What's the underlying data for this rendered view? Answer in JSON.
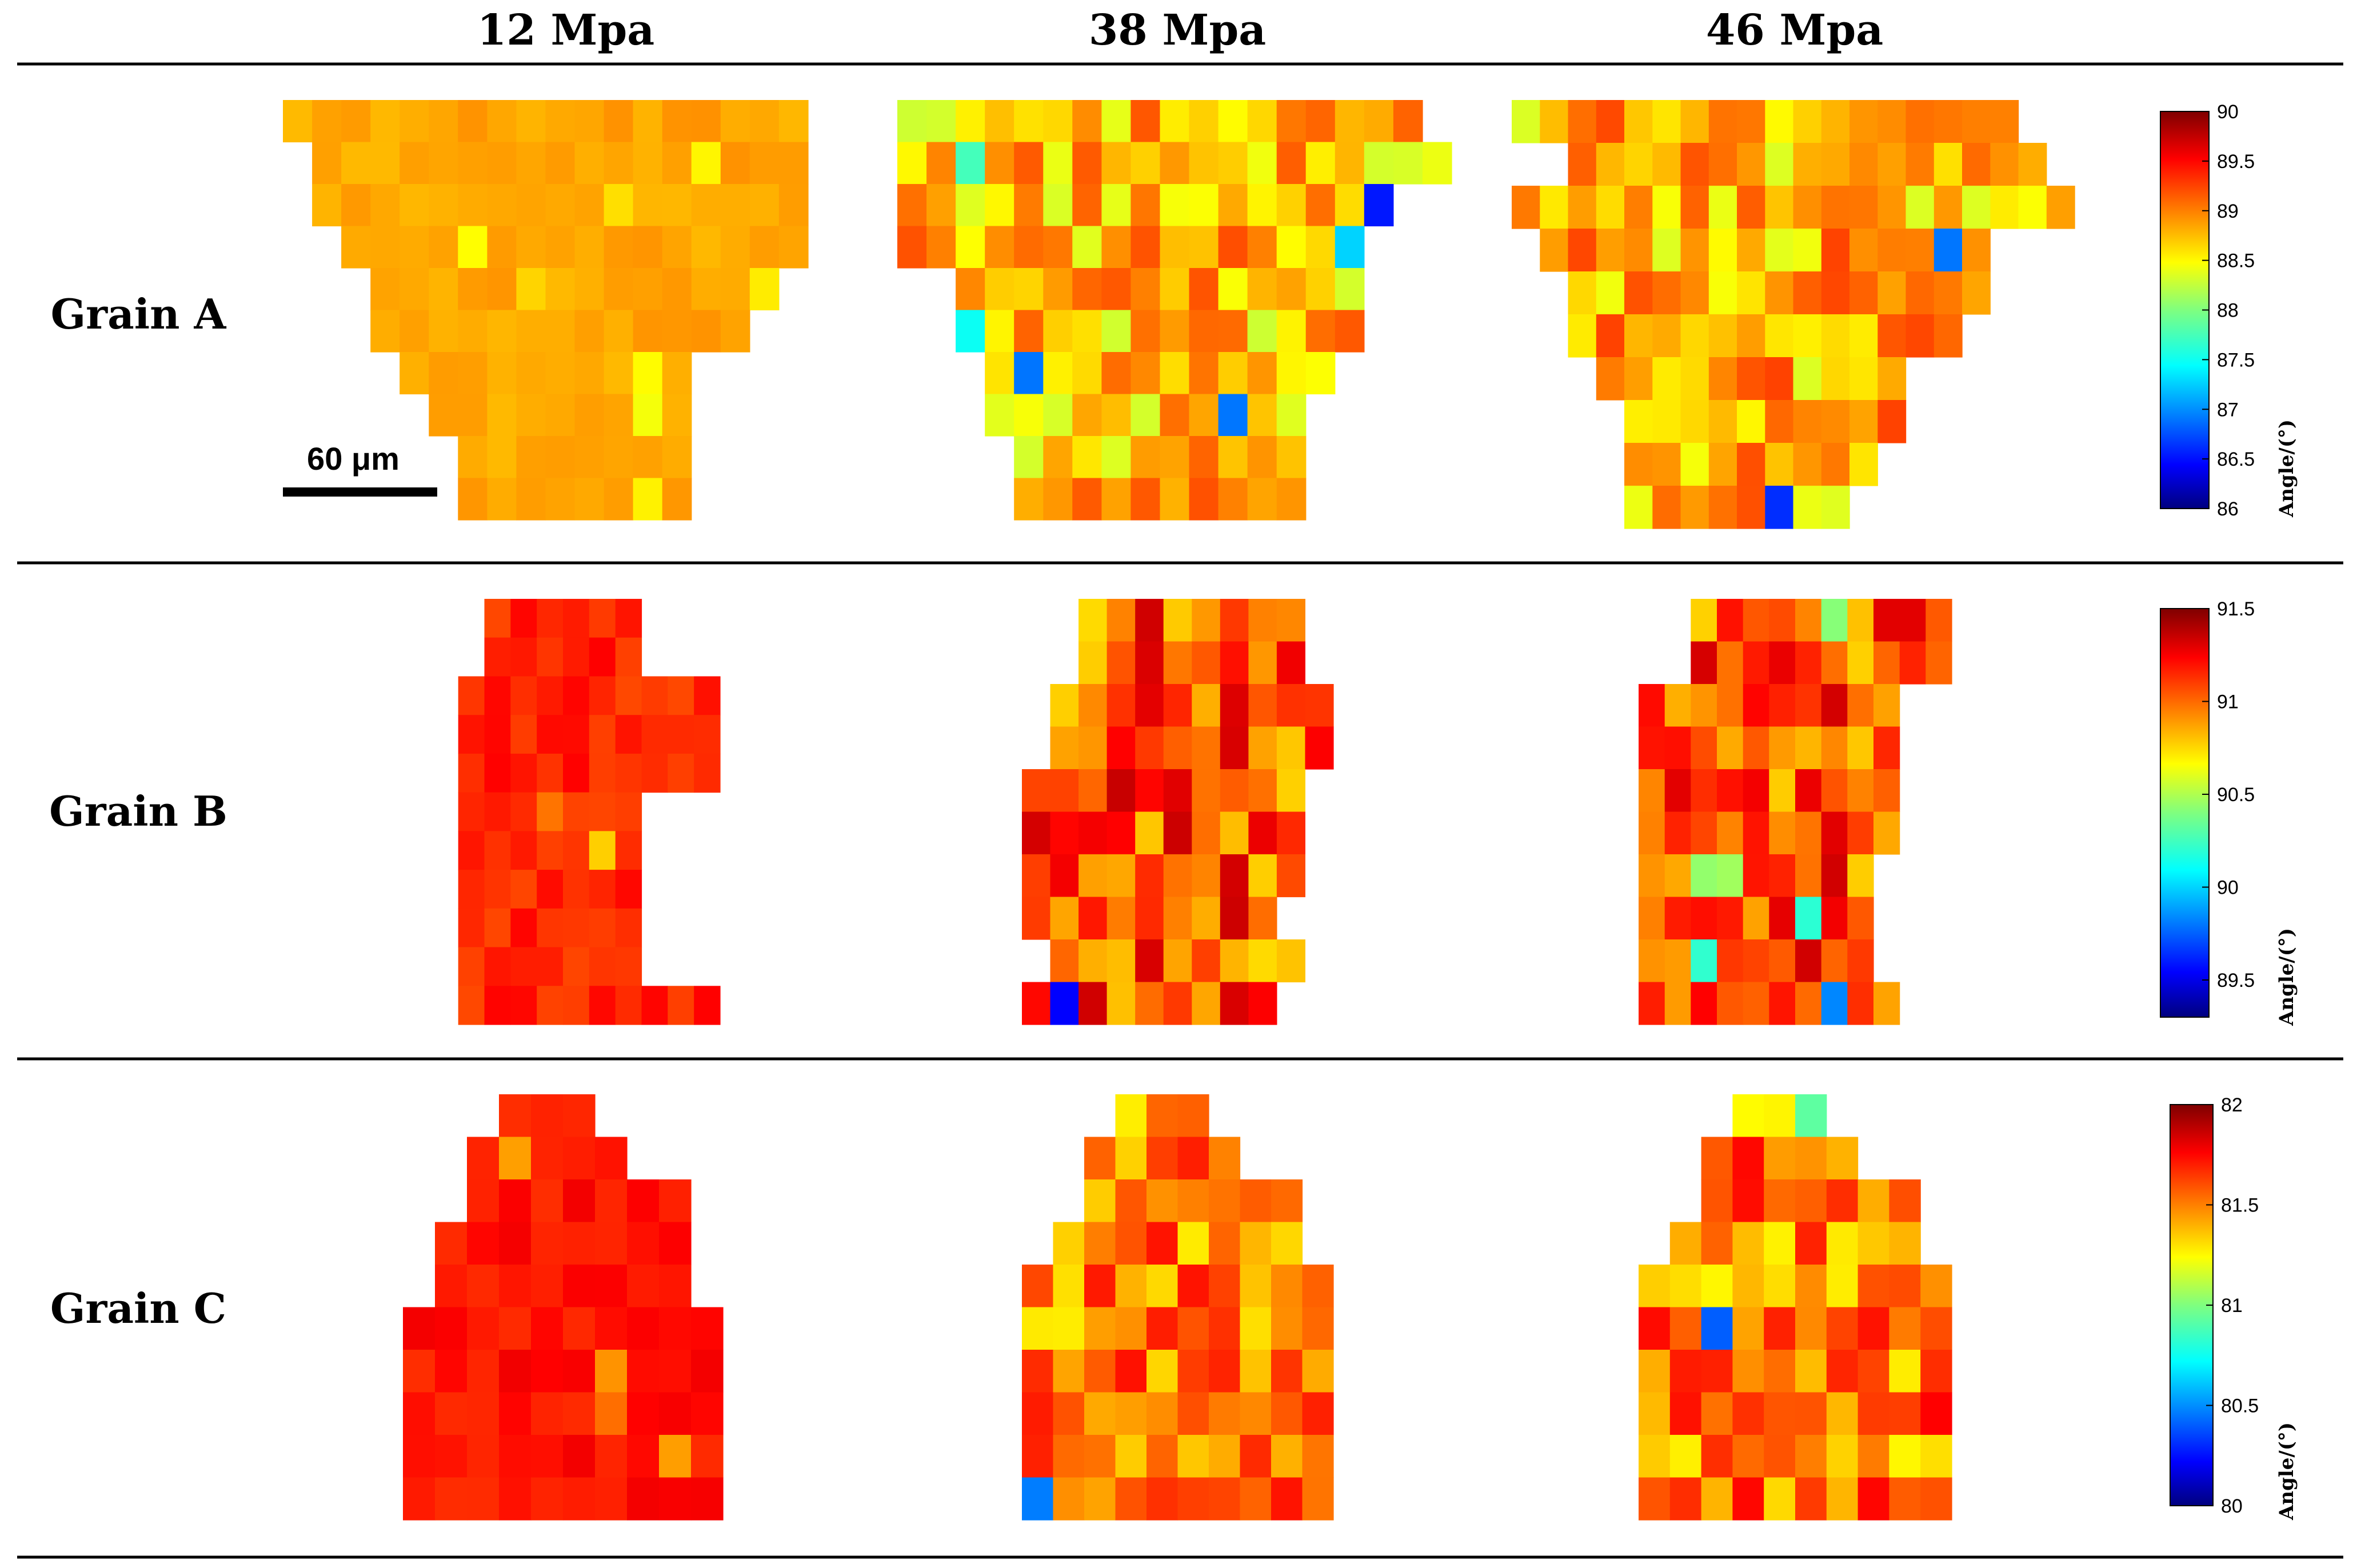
{
  "columns": [
    {
      "label": "12 Mpa"
    },
    {
      "label": "38 Mpa"
    },
    {
      "label": "46 Mpa"
    }
  ],
  "rows": [
    {
      "label": "Grain A",
      "colorbar": {
        "min": 86,
        "max": 90,
        "ticks": [
          "90",
          "89.5",
          "89",
          "88.5",
          "88",
          "87.5",
          "87",
          "86.5",
          "86"
        ],
        "label": "Angle/(°)"
      },
      "maps": [
        {
          "rows": [
            "000000000000000000",
            ".11111111111111111",
            ".00000000000000000",
            "..1111111111111111",
            "...00000000000000..",
            "...1111111111111..",
            "....1111111111....",
            ".....111111111....",
            "......11111111....",
            "......11111111...."
          ],
          "mean": 88.85,
          "spread": 0.08
        },
        {
          "rows": [
            "011111111111111111",
            "0111111111111111111",
            "01111111111111111",
            "0111111111111111",
            "..11111111111111",
            "..11111111111111",
            "...111111111111",
            "...11111111111",
            "....1111111111",
            "....1111111111"
          ],
          "mean": 88.75,
          "spread": 0.45
        },
        {
          "rows": [
            "111111111111111111",
            "..11111111111111111",
            "11111111111111111111",
            ".1111111111111111",
            "..111111111111111",
            "..11111111111111",
            "...11111111111",
            "....1111111111",
            "....111111111",
            "....11111111"
          ],
          "mean": 88.8,
          "spread": 0.45
        }
      ]
    },
    {
      "label": "Grain B",
      "colorbar": {
        "min": 89.3,
        "max": 91.5,
        "ticks": [
          "91.5",
          "91",
          "90.5",
          "90",
          "89.5"
        ],
        "label": "Angle/(°)"
      },
      "maps": [
        {
          "rows": [
            "...111111..",
            "...111111..",
            "..1111111111",
            "..1111111111",
            "..1111111111",
            "..1111111...",
            "..1111111...",
            "..1111111...",
            "..1111111...",
            "..1111111...",
            "..1111111111"
          ],
          "mean": 91.15,
          "spread": 0.08
        },
        {
          "rows": [
            "..11111111",
            "..11111111",
            ".1111111111",
            ".1111111111",
            "1111111111",
            "1111111111",
            "1111111111",
            "111111111",
            ".111111111",
            "111111111"
          ],
          "mean": 91.05,
          "spread": 0.3
        },
        {
          "rows": [
            "..1111111111",
            "..1111111111",
            "1111111111",
            "1111111111",
            "1111111111",
            "1111111111",
            "111111111",
            "111111111",
            "111111111",
            "1111111111"
          ],
          "mean": 91.05,
          "spread": 0.28
        }
      ]
    },
    {
      "label": "Grain C",
      "colorbar": {
        "min": 80,
        "max": 82,
        "ticks": [
          "82",
          "81.5",
          "81",
          "80.5",
          "80"
        ],
        "label": "Angle/(°)"
      },
      "maps": [
        {
          "rows": [
            "...111....",
            "..11111...",
            "..1111111.",
            ".11111111.",
            ".11111111.",
            "1111111111",
            "1111111111",
            "1111111111",
            "1111111111",
            "1111111111"
          ],
          "mean": 81.72,
          "spread": 0.06
        },
        {
          "rows": [
            "...111....",
            "..11111...",
            "..1111111.",
            ".11111111.",
            "1111111111",
            "1111111111",
            "1111111111",
            "1111111111",
            "1111111111",
            "1111111111"
          ],
          "mean": 81.5,
          "spread": 0.22
        },
        {
          "rows": [
            "...111....",
            "..11111...",
            "..1111111.",
            ".11111111.",
            "1111111111",
            "1111111111",
            "1111111111",
            "1111111111",
            "1111111111",
            "1111111111"
          ],
          "mean": 81.5,
          "spread": 0.25
        }
      ]
    }
  ],
  "scalebar": {
    "label": "60 μm"
  },
  "colors": {
    "rule": "#000000"
  }
}
